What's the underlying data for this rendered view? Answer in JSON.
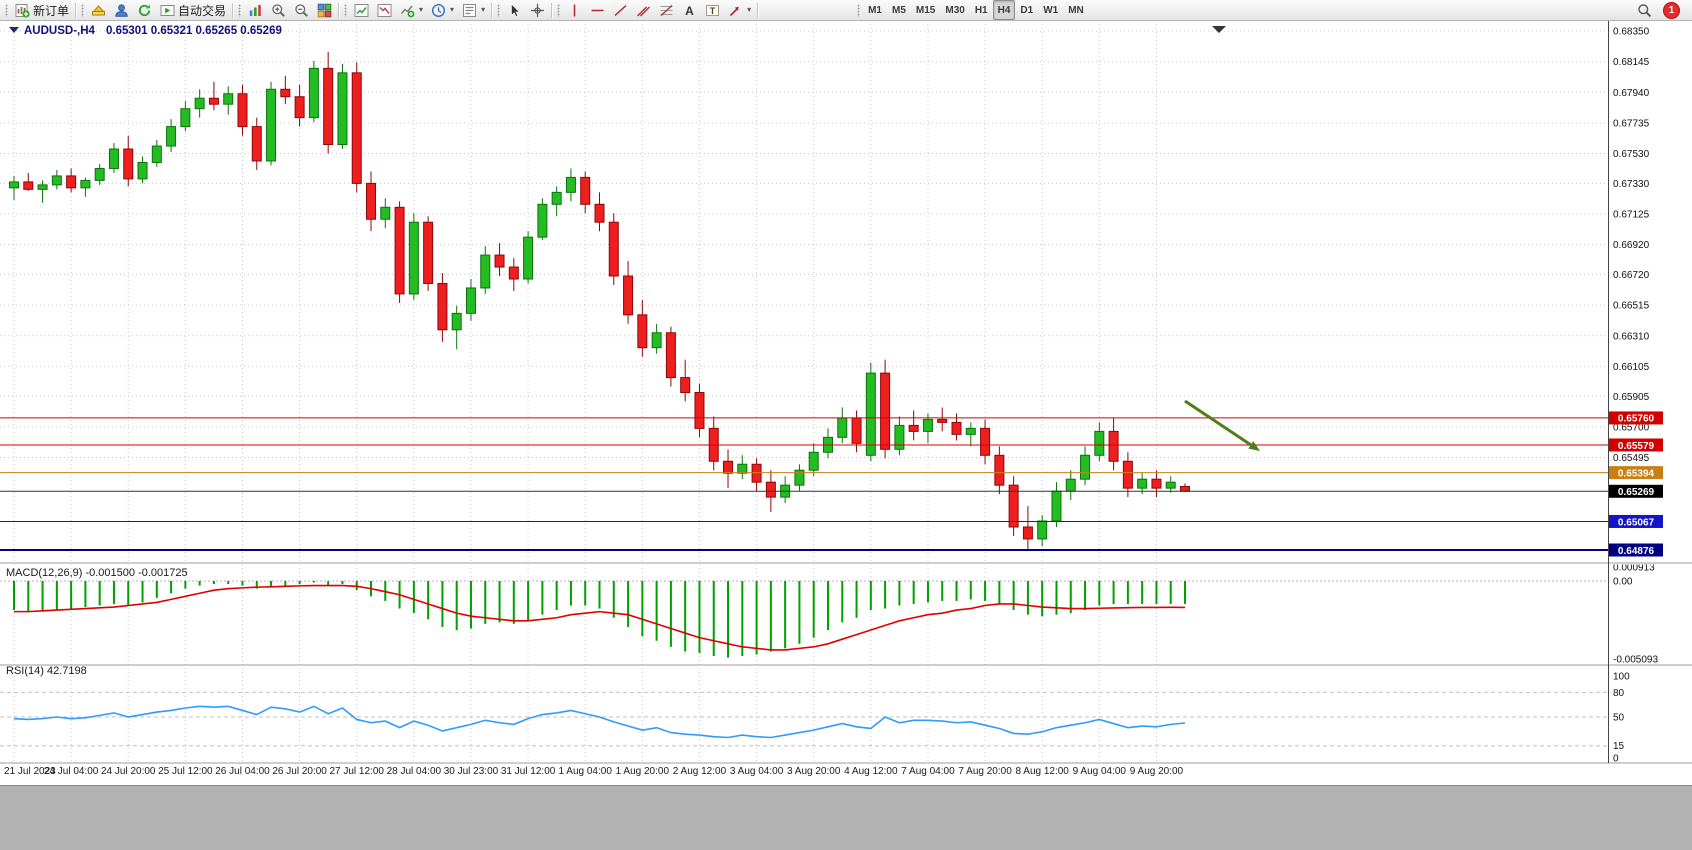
{
  "toolbar": {
    "notification_badge": "1",
    "groups": [
      {
        "name": "trade",
        "items": [
          {
            "name": "new-order-button",
            "icon": "new-order",
            "label": "新订单"
          }
        ]
      },
      {
        "name": "quick-access",
        "items": [
          {
            "name": "metaeditor-button",
            "icon": "metaeditor"
          },
          {
            "name": "community-button",
            "icon": "profile"
          },
          {
            "name": "refresh-button",
            "icon": "refresh"
          },
          {
            "name": "autotrading-button",
            "icon": "autotrading",
            "label": "自动交易"
          }
        ]
      },
      {
        "name": "view",
        "items": [
          {
            "name": "bar-chart-button",
            "icon": "bar-chart"
          },
          {
            "name": "zoom-in-button",
            "icon": "zoom-in"
          },
          {
            "name": "zoom-out-button",
            "icon": "zoom-out"
          },
          {
            "name": "tile-windows-button",
            "icon": "tile-windows"
          }
        ]
      },
      {
        "name": "chart-manage",
        "items": [
          {
            "name": "new-chart-button",
            "icon": "chart-up"
          },
          {
            "name": "profiles-button",
            "icon": "chart-down"
          },
          {
            "name": "indicators-button",
            "icon": "add-indicator",
            "dropdown": true
          },
          {
            "name": "periods-button",
            "icon": "clock",
            "dropdown": true
          },
          {
            "name": "templates-button",
            "icon": "templates",
            "dropdown": true
          }
        ]
      },
      {
        "name": "cursor-tools",
        "items": [
          {
            "name": "cursor-button",
            "icon": "cursor"
          },
          {
            "name": "crosshair-button",
            "icon": "crosshair"
          }
        ]
      },
      {
        "name": "draw-tools",
        "items": [
          {
            "name": "vertical-line-button",
            "icon": "vline"
          },
          {
            "name": "horizontal-line-button",
            "icon": "hline"
          },
          {
            "name": "trendline-button",
            "icon": "trendline"
          },
          {
            "name": "channel-button",
            "icon": "channel"
          },
          {
            "name": "fibonacci-button",
            "icon": "fibonacci"
          },
          {
            "name": "text-button",
            "icon": "text"
          },
          {
            "name": "text-label-button",
            "icon": "text-label"
          },
          {
            "name": "arrows-button",
            "icon": "arrows",
            "dropdown": true
          }
        ]
      },
      {
        "name": "timeframes",
        "items": [
          {
            "name": "timeframe-m1",
            "label": "M1",
            "tf": true
          },
          {
            "name": "timeframe-m5",
            "label": "M5",
            "tf": true
          },
          {
            "name": "timeframe-m15",
            "label": "M15",
            "tf": true
          },
          {
            "name": "timeframe-m30",
            "label": "M30",
            "tf": true
          },
          {
            "name": "timeframe-h1",
            "label": "H1",
            "tf": true
          },
          {
            "name": "timeframe-h4",
            "label": "H4",
            "tf": true,
            "active": true
          },
          {
            "name": "timeframe-d1",
            "label": "D1",
            "tf": true
          },
          {
            "name": "timeframe-w1",
            "label": "W1",
            "tf": true
          },
          {
            "name": "timeframe-mn",
            "label": "MN",
            "tf": true
          }
        ]
      }
    ]
  },
  "chart_data": [
    {
      "type": "candlestick",
      "title": "AUDUSD-,H4",
      "ohlc_display": "0.65301 0.65321 0.65265 0.65269",
      "ylim": [
        0.64876,
        0.6835
      ],
      "y_ticks": [
        "0.68350",
        "0.68145",
        "0.67940",
        "0.67735",
        "0.67530",
        "0.67330",
        "0.67125",
        "0.66920",
        "0.66720",
        "0.66515",
        "0.66310",
        "0.66105",
        "0.65905",
        "0.65700",
        "0.65495"
      ],
      "x_labels": [
        "21 Jul 2023",
        "24 Jul 04:00",
        "24 Jul 20:00",
        "25 Jul 12:00",
        "26 Jul 04:00",
        "26 Jul 20:00",
        "27 Jul 12:00",
        "28 Jul 04:00",
        "30 Jul 23:00",
        "31 Jul 12:00",
        "1 Aug 04:00",
        "1 Aug 20:00",
        "2 Aug 12:00",
        "3 Aug 04:00",
        "3 Aug 20:00",
        "4 Aug 12:00",
        "7 Aug 04:00",
        "7 Aug 20:00",
        "8 Aug 12:00",
        "9 Aug 04:00",
        "9 Aug 20:00"
      ],
      "x_label_every_n_candles": 4,
      "candles": [
        [
          0.673,
          0.6738,
          0.6722,
          0.6734
        ],
        [
          0.6734,
          0.674,
          0.6728,
          0.6729
        ],
        [
          0.6729,
          0.6735,
          0.672,
          0.6732
        ],
        [
          0.6732,
          0.6742,
          0.6729,
          0.6738
        ],
        [
          0.6738,
          0.6743,
          0.6727,
          0.673
        ],
        [
          0.673,
          0.6737,
          0.6724,
          0.6735
        ],
        [
          0.6735,
          0.6746,
          0.6732,
          0.6743
        ],
        [
          0.6743,
          0.676,
          0.674,
          0.6756
        ],
        [
          0.6756,
          0.6765,
          0.6731,
          0.6736
        ],
        [
          0.6736,
          0.6751,
          0.6733,
          0.6747
        ],
        [
          0.6747,
          0.6762,
          0.6744,
          0.6758
        ],
        [
          0.6758,
          0.6776,
          0.6754,
          0.6771
        ],
        [
          0.6771,
          0.6788,
          0.6768,
          0.6783
        ],
        [
          0.6783,
          0.6796,
          0.6777,
          0.679
        ],
        [
          0.679,
          0.6801,
          0.6782,
          0.6786
        ],
        [
          0.6786,
          0.6798,
          0.6779,
          0.6793
        ],
        [
          0.6793,
          0.6799,
          0.6765,
          0.6771
        ],
        [
          0.6771,
          0.6777,
          0.6742,
          0.6748
        ],
        [
          0.6748,
          0.6801,
          0.6745,
          0.6796
        ],
        [
          0.6796,
          0.6805,
          0.6786,
          0.6791
        ],
        [
          0.6791,
          0.6799,
          0.6771,
          0.6777
        ],
        [
          0.6777,
          0.6815,
          0.6774,
          0.681
        ],
        [
          0.681,
          0.6821,
          0.6753,
          0.6759
        ],
        [
          0.6759,
          0.6813,
          0.6756,
          0.6807
        ],
        [
          0.6807,
          0.6814,
          0.6727,
          0.6733
        ],
        [
          0.6733,
          0.6741,
          0.6701,
          0.6709
        ],
        [
          0.6709,
          0.6723,
          0.6703,
          0.6717
        ],
        [
          0.6717,
          0.6721,
          0.6653,
          0.6659
        ],
        [
          0.6659,
          0.6713,
          0.6655,
          0.6707
        ],
        [
          0.6707,
          0.6711,
          0.6661,
          0.6666
        ],
        [
          0.6666,
          0.6673,
          0.6627,
          0.6635
        ],
        [
          0.6635,
          0.6651,
          0.6622,
          0.6646
        ],
        [
          0.6646,
          0.6669,
          0.6641,
          0.6663
        ],
        [
          0.6663,
          0.6691,
          0.6659,
          0.6685
        ],
        [
          0.6685,
          0.6693,
          0.6671,
          0.6677
        ],
        [
          0.6677,
          0.6683,
          0.6661,
          0.6669
        ],
        [
          0.6669,
          0.6701,
          0.6666,
          0.6697
        ],
        [
          0.6697,
          0.6723,
          0.6695,
          0.6719
        ],
        [
          0.6719,
          0.6731,
          0.6711,
          0.6727
        ],
        [
          0.6727,
          0.6743,
          0.6721,
          0.6737
        ],
        [
          0.6737,
          0.6741,
          0.6713,
          0.6719
        ],
        [
          0.6719,
          0.6727,
          0.6701,
          0.6707
        ],
        [
          0.6707,
          0.6713,
          0.6665,
          0.6671
        ],
        [
          0.6671,
          0.6681,
          0.6639,
          0.6645
        ],
        [
          0.6645,
          0.6655,
          0.6617,
          0.6623
        ],
        [
          0.6623,
          0.6639,
          0.6619,
          0.6633
        ],
        [
          0.6633,
          0.6637,
          0.6597,
          0.6603
        ],
        [
          0.6603,
          0.6615,
          0.6587,
          0.6593
        ],
        [
          0.6593,
          0.6599,
          0.6563,
          0.6569
        ],
        [
          0.6569,
          0.6577,
          0.6541,
          0.6547
        ],
        [
          0.6547,
          0.6555,
          0.6529,
          0.6539
        ],
        [
          0.6539,
          0.6551,
          0.6535,
          0.6545
        ],
        [
          0.6545,
          0.6549,
          0.6527,
          0.6533
        ],
        [
          0.6533,
          0.6541,
          0.6513,
          0.6523
        ],
        [
          0.6523,
          0.6537,
          0.6519,
          0.6531
        ],
        [
          0.6531,
          0.6545,
          0.6527,
          0.6541
        ],
        [
          0.6541,
          0.6559,
          0.6537,
          0.6553
        ],
        [
          0.6553,
          0.6569,
          0.6549,
          0.6563
        ],
        [
          0.6563,
          0.6583,
          0.6559,
          0.6576
        ],
        [
          0.6576,
          0.6581,
          0.6553,
          0.6559
        ],
        [
          0.6551,
          0.6613,
          0.6547,
          0.6606
        ],
        [
          0.6606,
          0.6615,
          0.6549,
          0.6555
        ],
        [
          0.6555,
          0.6577,
          0.6551,
          0.6571
        ],
        [
          0.6571,
          0.6581,
          0.6561,
          0.6567
        ],
        [
          0.6567,
          0.6579,
          0.6559,
          0.6575
        ],
        [
          0.6575,
          0.6583,
          0.6567,
          0.6573
        ],
        [
          0.6573,
          0.6579,
          0.6561,
          0.6565
        ],
        [
          0.6565,
          0.6573,
          0.6557,
          0.6569
        ],
        [
          0.6569,
          0.6575,
          0.6545,
          0.6551
        ],
        [
          0.6551,
          0.6557,
          0.6525,
          0.6531
        ],
        [
          0.6531,
          0.6537,
          0.6497,
          0.6503
        ],
        [
          0.6503,
          0.6517,
          0.6488,
          0.6495
        ],
        [
          0.6495,
          0.6511,
          0.649,
          0.6507
        ],
        [
          0.6507,
          0.6533,
          0.6503,
          0.6527
        ],
        [
          0.6527,
          0.6541,
          0.6521,
          0.6535
        ],
        [
          0.6535,
          0.6557,
          0.6531,
          0.6551
        ],
        [
          0.6551,
          0.6573,
          0.6547,
          0.6567
        ],
        [
          0.6567,
          0.6576,
          0.6541,
          0.6547
        ],
        [
          0.6547,
          0.6553,
          0.6523,
          0.6529
        ],
        [
          0.6529,
          0.6539,
          0.6525,
          0.6535
        ],
        [
          0.6535,
          0.6541,
          0.6523,
          0.6529
        ],
        [
          0.6529,
          0.6537,
          0.6526,
          0.6533
        ],
        [
          0.65301,
          0.65321,
          0.65265,
          0.65269
        ]
      ],
      "hlines": [
        {
          "price": 0.6576,
          "label": "0.65760",
          "color": "#d40000",
          "width": 1
        },
        {
          "price": 0.65579,
          "label": "0.65579",
          "color": "#d40000",
          "width": 1
        },
        {
          "price": 0.65394,
          "label": "0.65394",
          "color": "#c88014",
          "width": 1
        },
        {
          "price": 0.65067,
          "label": "0.65067",
          "color": "#1414c8",
          "width": 1
        },
        {
          "price": 0.64876,
          "label": "0.64876",
          "color": "#000080",
          "width": 2
        }
      ],
      "current_price": {
        "price": 0.65269,
        "label": "0.65269",
        "color": "#000000"
      },
      "arrow_annotation": {
        "from": [
          1185,
          380
        ],
        "to": [
          1260,
          430
        ],
        "color": "#4e7d1a"
      },
      "colors": {
        "up": "#23bd23",
        "up_stroke": "#0c720c",
        "down": "#f01f1f",
        "down_stroke": "#8f0606",
        "grid": "#c9c9c9",
        "header": "#10107a"
      }
    },
    {
      "type": "macd",
      "label": "MACD(12,26,9) -0.001500 -0.001725",
      "ylim": [
        -0.005093,
        0.000913
      ],
      "y_ticks": [
        {
          "label": "0.000913",
          "value": 0.000913
        },
        {
          "label": "0.00",
          "value": 0
        },
        {
          "label": "-0.005093",
          "value": -0.005093
        }
      ],
      "histogram": [
        -0.0019,
        -0.002,
        -0.002,
        -0.0019,
        -0.0018,
        -0.0017,
        -0.0016,
        -0.0015,
        -0.0016,
        -0.0014,
        -0.0011,
        -0.0008,
        -0.0005,
        -0.0003,
        -0.0002,
        -0.0002,
        -0.0003,
        -0.0005,
        -0.0004,
        -0.0003,
        -0.0002,
        -0.0001,
        -0.0003,
        -0.0002,
        -0.0006,
        -0.001,
        -0.0013,
        -0.0018,
        -0.0021,
        -0.0025,
        -0.003,
        -0.0032,
        -0.0031,
        -0.0028,
        -0.0027,
        -0.0028,
        -0.0026,
        -0.0022,
        -0.0019,
        -0.0016,
        -0.0016,
        -0.0018,
        -0.0024,
        -0.003,
        -0.0036,
        -0.0039,
        -0.0043,
        -0.0046,
        -0.0047,
        -0.0049,
        -0.005,
        -0.0049,
        -0.0048,
        -0.0046,
        -0.0044,
        -0.0041,
        -0.0037,
        -0.0032,
        -0.0027,
        -0.0024,
        -0.0019,
        -0.0018,
        -0.0016,
        -0.0015,
        -0.0014,
        -0.0013,
        -0.0013,
        -0.0012,
        -0.0013,
        -0.0015,
        -0.0019,
        -0.0022,
        -0.0023,
        -0.0022,
        -0.0021,
        -0.0019,
        -0.0016,
        -0.0015,
        -0.0015,
        -0.0015,
        -0.0015,
        -0.0015,
        -0.0015
      ],
      "signal": [
        -0.002,
        -0.002,
        -0.00195,
        -0.0019,
        -0.00185,
        -0.0018,
        -0.00175,
        -0.0017,
        -0.0016,
        -0.0015,
        -0.0014,
        -0.0012,
        -0.001,
        -0.0008,
        -0.0006,
        -0.0005,
        -0.00045,
        -0.0004,
        -0.00038,
        -0.00035,
        -0.00032,
        -0.0003,
        -0.0003,
        -0.0003,
        -0.00035,
        -0.0005,
        -0.0007,
        -0.0009,
        -0.0012,
        -0.0015,
        -0.0018,
        -0.0021,
        -0.0023,
        -0.0024,
        -0.0025,
        -0.0026,
        -0.0026,
        -0.0025,
        -0.0024,
        -0.0022,
        -0.0021,
        -0.002,
        -0.0021,
        -0.0022,
        -0.0025,
        -0.0028,
        -0.0031,
        -0.0034,
        -0.0037,
        -0.0039,
        -0.0041,
        -0.0043,
        -0.0044,
        -0.0045,
        -0.0045,
        -0.0044,
        -0.0043,
        -0.0041,
        -0.0038,
        -0.0035,
        -0.0032,
        -0.0029,
        -0.0026,
        -0.0024,
        -0.0022,
        -0.0021,
        -0.0019,
        -0.0018,
        -0.0016,
        -0.0015,
        -0.0015,
        -0.0016,
        -0.0017,
        -0.00175,
        -0.0018,
        -0.0018,
        -0.00178,
        -0.00176,
        -0.00174,
        -0.00173,
        -0.00173,
        -0.00172,
        -0.001725
      ],
      "colors": {
        "histogram": "#00a000",
        "signal": "#e00000"
      }
    },
    {
      "type": "rsi",
      "label": "RSI(14) 42.7198",
      "ylim": [
        0,
        100
      ],
      "levels": [
        "100",
        "80",
        "50",
        "15",
        "0"
      ],
      "dashed_levels": [
        80,
        50,
        15
      ],
      "values": [
        48,
        47,
        48,
        50,
        48,
        49,
        52,
        55,
        50,
        53,
        56,
        58,
        61,
        63,
        62,
        63,
        58,
        53,
        62,
        60,
        56,
        63,
        54,
        61,
        47,
        43,
        45,
        37,
        45,
        40,
        33,
        37,
        41,
        46,
        43,
        41,
        48,
        53,
        55,
        58,
        54,
        50,
        44,
        39,
        34,
        37,
        31,
        29,
        28,
        26,
        25,
        28,
        26,
        25,
        28,
        31,
        34,
        38,
        42,
        38,
        36,
        50,
        43,
        46,
        46,
        45,
        43,
        44,
        40,
        36,
        30,
        29,
        32,
        37,
        40,
        43,
        47,
        42,
        37,
        39,
        38,
        41,
        42.7
      ],
      "color": "#2f9bff"
    }
  ]
}
